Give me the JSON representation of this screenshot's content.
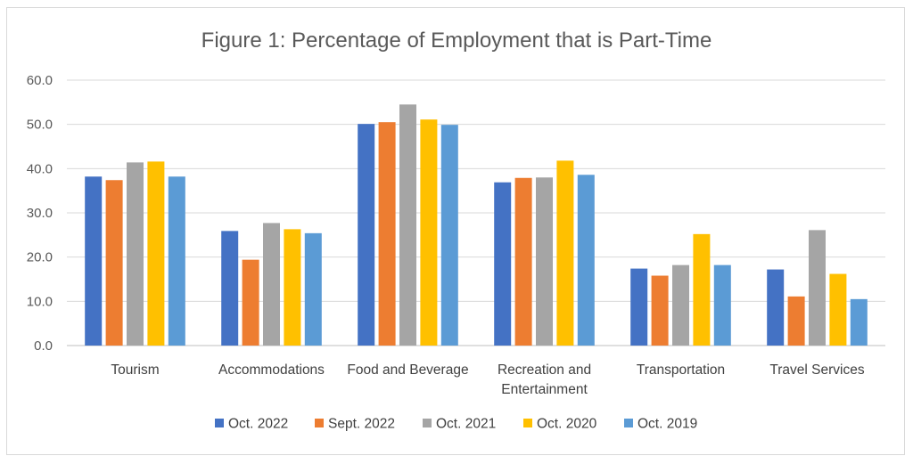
{
  "chart_data": {
    "type": "bar",
    "title": "Figure 1: Percentage of Employment that is Part-Time",
    "xlabel": "",
    "ylabel": "",
    "ylim": [
      0,
      60
    ],
    "yticks": [
      "0.0",
      "10.0",
      "20.0",
      "30.0",
      "40.0",
      "50.0",
      "60.0"
    ],
    "grid": true,
    "legend_position": "bottom",
    "categories": [
      [
        "Tourism"
      ],
      [
        "Accommodations"
      ],
      [
        "Food and Beverage"
      ],
      [
        "Recreation and",
        "Entertainment"
      ],
      [
        "Transportation"
      ],
      [
        "Travel Services"
      ]
    ],
    "series": [
      {
        "name": "Oct. 2022",
        "color": "#4472c4",
        "values": [
          38.2,
          25.9,
          50.1,
          36.9,
          17.4,
          17.2
        ]
      },
      {
        "name": "Sept. 2022",
        "color": "#ed7d31",
        "values": [
          37.4,
          19.4,
          50.5,
          37.9,
          15.8,
          11.1
        ]
      },
      {
        "name": "Oct. 2021",
        "color": "#a5a5a5",
        "values": [
          41.4,
          27.7,
          54.5,
          38.0,
          18.2,
          26.1
        ]
      },
      {
        "name": "Oct. 2020",
        "color": "#ffc000",
        "values": [
          41.6,
          26.3,
          51.1,
          41.8,
          25.2,
          16.2
        ]
      },
      {
        "name": "Oct. 2019",
        "color": "#5b9bd5",
        "values": [
          38.2,
          25.4,
          49.9,
          38.6,
          18.2,
          10.5
        ]
      }
    ]
  }
}
